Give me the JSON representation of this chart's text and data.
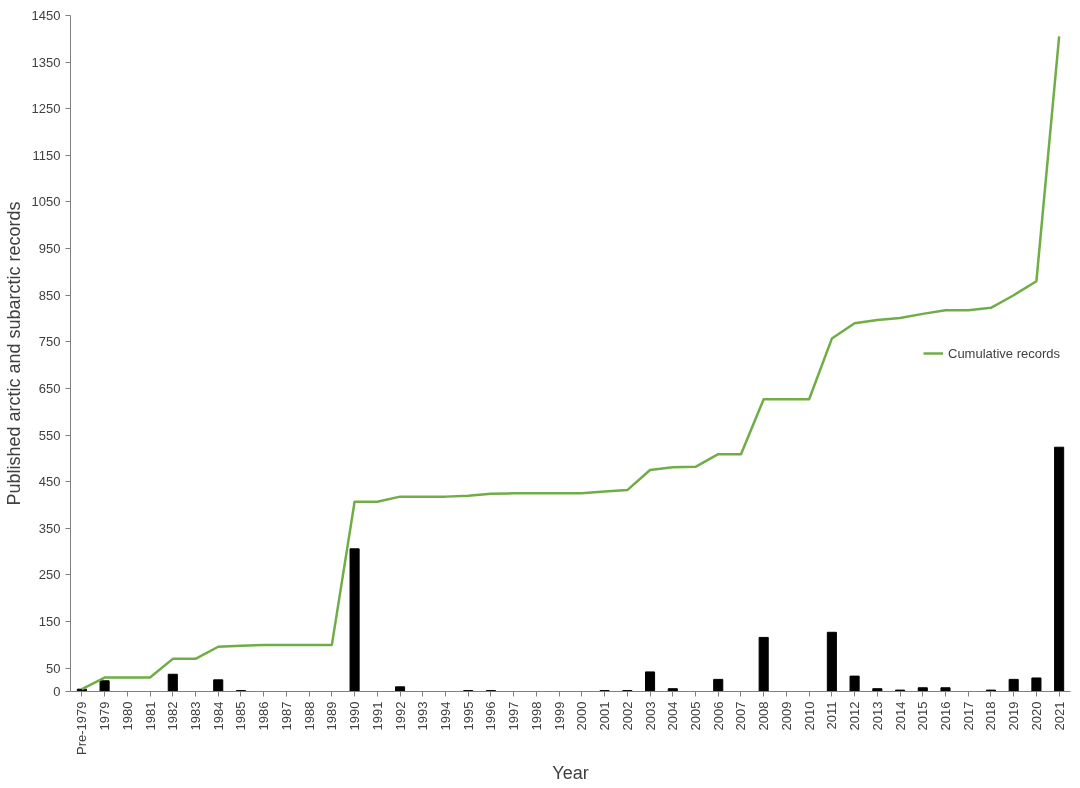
{
  "chart_data": {
    "type": "bar",
    "xlabel": "Year",
    "ylabel": "Published arctic and subarctic records",
    "categories": [
      "Pre-1979",
      "1979",
      "1980",
      "1981",
      "1982",
      "1983",
      "1984",
      "1985",
      "1986",
      "1987",
      "1988",
      "1989",
      "1990",
      "1991",
      "1992",
      "1993",
      "1994",
      "1995",
      "1996",
      "1997",
      "1998",
      "1999",
      "2000",
      "2001",
      "2002",
      "2003",
      "2004",
      "2005",
      "2006",
      "2007",
      "2008",
      "2009",
      "2010",
      "2011",
      "2012",
      "2013",
      "2014",
      "2015",
      "2016",
      "2017",
      "2018",
      "2019",
      "2020",
      "2021"
    ],
    "series": [
      {
        "color": "#000000",
        "values": [
          5,
          23,
          0,
          0,
          37,
          0,
          25,
          2,
          0,
          0,
          0,
          0,
          306,
          0,
          10,
          0,
          0,
          2,
          2,
          0,
          0,
          0,
          0,
          2,
          2,
          42,
          6,
          0,
          26,
          0,
          116,
          0,
          0,
          127,
          33,
          6,
          3,
          8,
          8,
          0,
          3,
          26,
          29,
          524
        ]
      },
      {
        "type": "line",
        "name": "Cumulative records",
        "color": "#70ad47",
        "values": [
          5,
          30,
          30,
          30,
          70,
          70,
          96,
          98,
          100,
          100,
          100,
          100,
          407,
          407,
          418,
          418,
          418,
          420,
          424,
          425,
          425,
          425,
          425,
          429,
          432,
          475,
          481,
          482,
          509,
          509,
          627,
          627,
          627,
          757,
          790,
          797,
          801,
          810,
          818,
          818,
          823,
          850,
          880,
          1405
        ]
      }
    ],
    "ylim": [
      0,
      1450
    ],
    "yticks": [
      0,
      50,
      150,
      250,
      350,
      450,
      550,
      650,
      750,
      850,
      950,
      1050,
      1150,
      1250,
      1350,
      1450
    ],
    "grid": false,
    "legend": "right",
    "marker": "none",
    "line_style": "solid"
  }
}
